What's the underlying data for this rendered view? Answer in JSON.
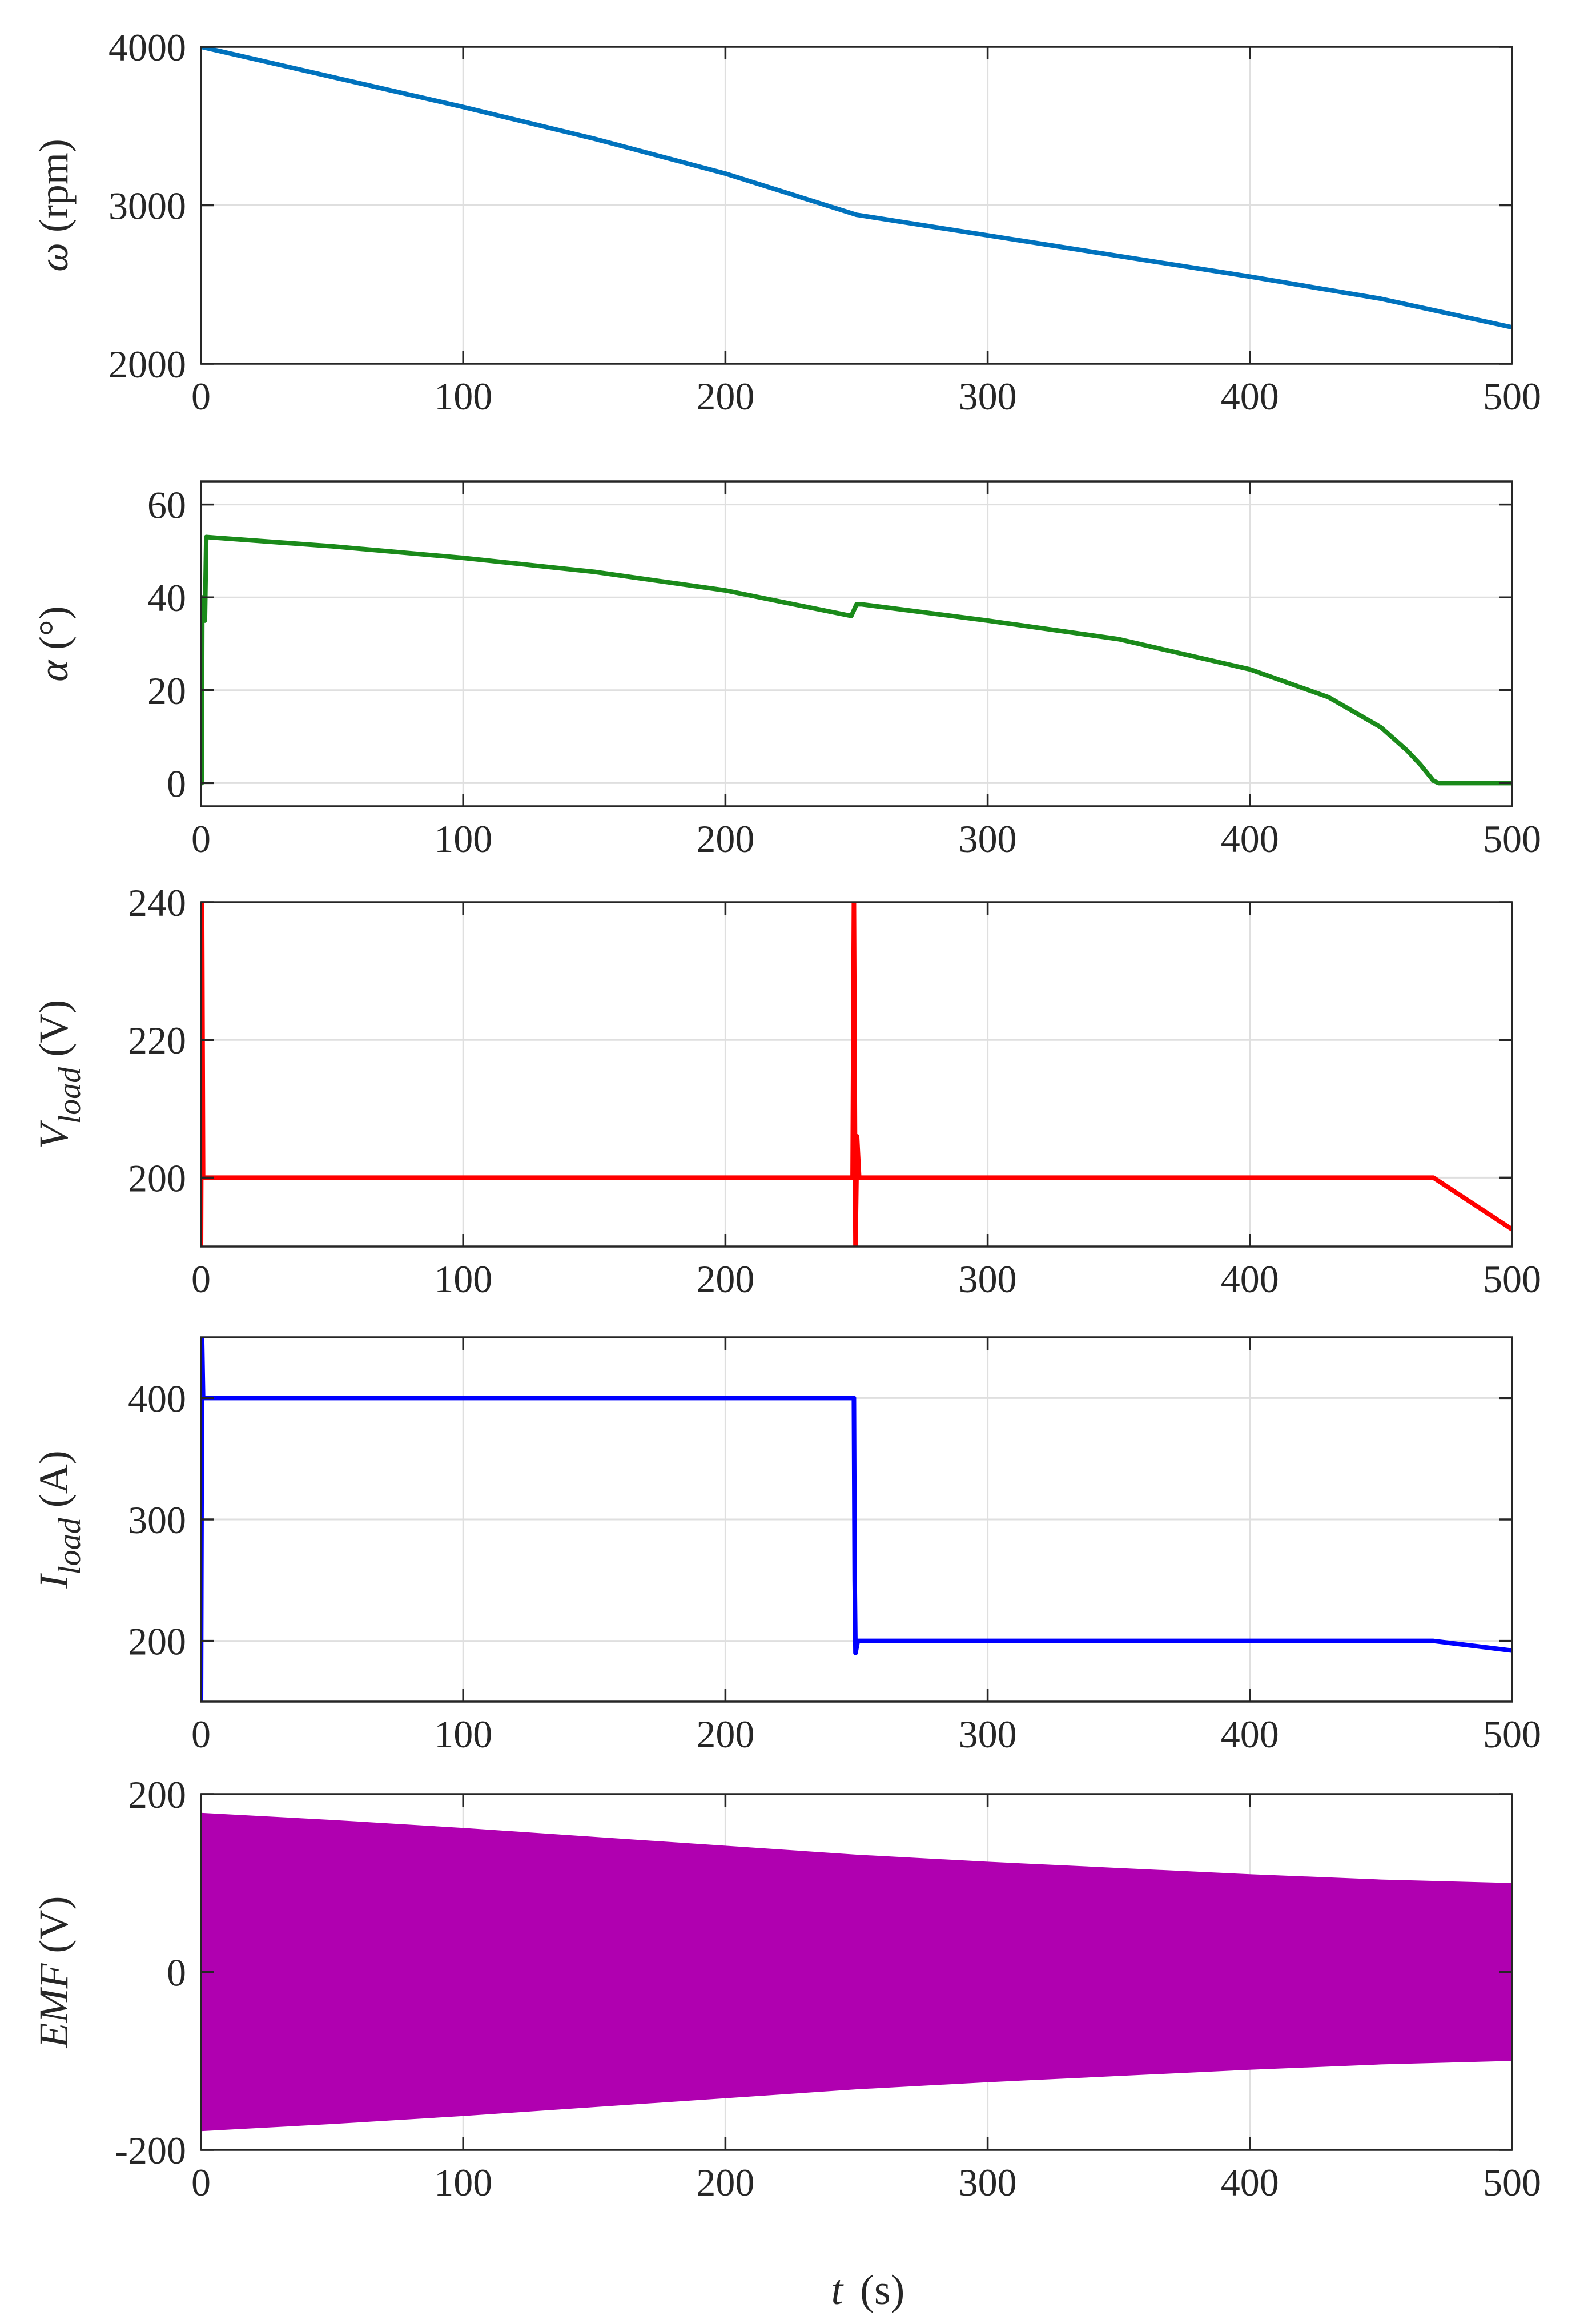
{
  "figure": {
    "xlabel_var": "t",
    "xlabel_unit": "(s)"
  },
  "chart_data": [
    {
      "type": "line",
      "ylabel_var": "ω",
      "ylabel_sub": "",
      "ylabel_unit": "(rpm)",
      "color": "#0072BD",
      "xlim": [
        0,
        500
      ],
      "ylim": [
        2000,
        4000
      ],
      "xticks": [
        0,
        100,
        200,
        300,
        400,
        500
      ],
      "yticks": [
        2000,
        3000,
        4000
      ],
      "xtick_labels": [
        "0",
        "100",
        "200",
        "300",
        "400",
        "500"
      ],
      "ytick_labels": [
        "2000",
        "3000",
        "4000"
      ],
      "grid": true,
      "series": [
        {
          "x": [
            0,
            50,
            100,
            150,
            200,
            250,
            300,
            350,
            400,
            450,
            500
          ],
          "y": [
            4000,
            3810,
            3620,
            3420,
            3200,
            2940,
            2810,
            2680,
            2550,
            2410,
            2230
          ]
        }
      ]
    },
    {
      "type": "line",
      "ylabel_var": "α",
      "ylabel_sub": "",
      "ylabel_unit": "(°)",
      "color": "#1a8a1a",
      "xlim": [
        0,
        500
      ],
      "ylim": [
        -5,
        65
      ],
      "xticks": [
        0,
        100,
        200,
        300,
        400,
        500
      ],
      "yticks": [
        0,
        20,
        40,
        60
      ],
      "xtick_labels": [
        "0",
        "100",
        "200",
        "300",
        "400",
        "500"
      ],
      "ytick_labels": [
        "0",
        "20",
        "40",
        "60"
      ],
      "grid": true,
      "series": [
        {
          "x": [
            0,
            0.3,
            0.5,
            1.5,
            2,
            50,
            100,
            150,
            200,
            248,
            250,
            252,
            300,
            350,
            400,
            430,
            450,
            460,
            465,
            470,
            472,
            500
          ],
          "y": [
            0,
            0,
            40,
            35,
            53,
            51,
            48.5,
            45.5,
            41.5,
            36,
            38.5,
            38.5,
            35,
            31,
            24.5,
            18.5,
            12,
            7,
            4,
            0.5,
            0,
            0
          ]
        }
      ]
    },
    {
      "type": "line",
      "ylabel_var": "V",
      "ylabel_sub": "load",
      "ylabel_unit": "(V)",
      "color": "#ff0000",
      "xlim": [
        0,
        500
      ],
      "ylim": [
        190,
        240
      ],
      "xticks": [
        0,
        100,
        200,
        300,
        400,
        500
      ],
      "yticks": [
        200,
        220,
        240
      ],
      "xtick_labels": [
        "0",
        "100",
        "200",
        "300",
        "400",
        "500"
      ],
      "ytick_labels": [
        "200",
        "220",
        "240"
      ],
      "grid": true,
      "series": [
        {
          "x": [
            0,
            0.4,
            0.8,
            1.5,
            100,
            200,
            248.5,
            249,
            249.6,
            250.2,
            251,
            300,
            400,
            470,
            500
          ],
          "y": [
            190,
            240,
            200,
            200,
            200,
            200,
            200,
            240,
            190,
            206,
            200,
            200,
            200,
            200,
            192.5
          ]
        }
      ]
    },
    {
      "type": "line",
      "ylabel_var": "I",
      "ylabel_sub": "load",
      "ylabel_unit": "(A)",
      "color": "#0000ff",
      "xlim": [
        0,
        500
      ],
      "ylim": [
        150,
        450
      ],
      "xticks": [
        0,
        100,
        200,
        300,
        400,
        500
      ],
      "yticks": [
        200,
        300,
        400
      ],
      "xtick_labels": [
        "0",
        "100",
        "200",
        "300",
        "400",
        "500"
      ],
      "ytick_labels": [
        "200",
        "300",
        "400"
      ],
      "grid": true,
      "series": [
        {
          "x": [
            0,
            0.4,
            0.8,
            2,
            100,
            200,
            249,
            249.3,
            249.6,
            250.5,
            300,
            400,
            470,
            500
          ],
          "y": [
            150,
            450,
            400,
            400,
            400,
            400,
            400,
            250,
            190,
            200,
            200,
            200,
            200,
            192
          ]
        }
      ]
    },
    {
      "type": "area",
      "ylabel_var": "EMF",
      "ylabel_sub": "",
      "ylabel_unit": "(V)",
      "color": "#b000b0",
      "xlim": [
        0,
        500
      ],
      "ylim": [
        -200,
        200
      ],
      "xticks": [
        0,
        100,
        200,
        300,
        400,
        500
      ],
      "yticks": [
        -200,
        0,
        200
      ],
      "xtick_labels": [
        "0",
        "100",
        "200",
        "300",
        "400",
        "500"
      ],
      "ytick_labels": [
        "-200",
        "0",
        "200"
      ],
      "grid": true,
      "series": [
        {
          "x": [
            0,
            50,
            100,
            150,
            200,
            250,
            300,
            350,
            400,
            450,
            500
          ],
          "upper": [
            178,
            170,
            161,
            151,
            141,
            131,
            123,
            116,
            109,
            103,
            99
          ],
          "lower": [
            -178,
            -170,
            -161,
            -151,
            -141,
            -131,
            -123,
            -116,
            -109,
            -103,
            -99
          ]
        }
      ]
    }
  ]
}
